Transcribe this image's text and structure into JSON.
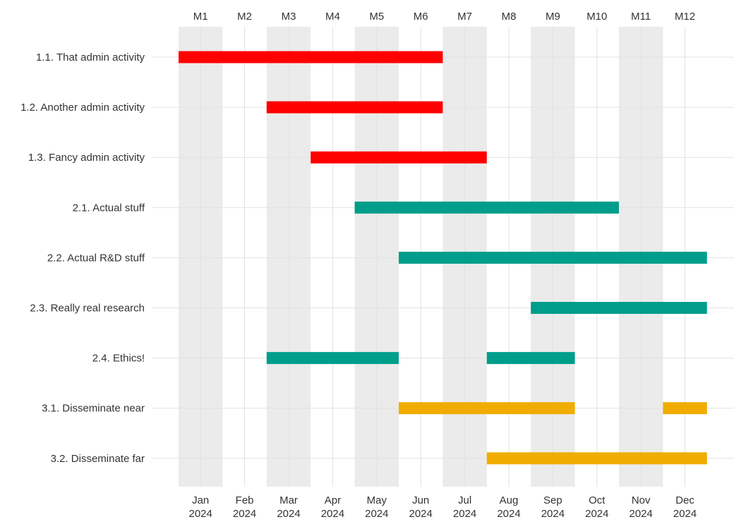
{
  "chart_data": {
    "type": "gantt",
    "title": "",
    "xlabel": "",
    "ylabel": "",
    "months_top": [
      "M1",
      "M2",
      "M3",
      "M4",
      "M5",
      "M6",
      "M7",
      "M8",
      "M9",
      "M10",
      "M11",
      "M12"
    ],
    "months_bottom": [
      "Jan",
      "Feb",
      "Mar",
      "Apr",
      "May",
      "Jun",
      "Jul",
      "Aug",
      "Sep",
      "Oct",
      "Nov",
      "Dec"
    ],
    "year": "2024",
    "x_range_months": [
      1,
      13
    ],
    "colors": {
      "admin": "#FF0000",
      "research": "#009E8A",
      "dissemination": "#F0AD00",
      "band": "#EBEBEB",
      "grid": "#E2E2E2"
    },
    "tasks": [
      {
        "label": "1.1. That admin activity",
        "group": "admin",
        "segments": [
          [
            1,
            7
          ]
        ]
      },
      {
        "label": "1.2. Another admin activity",
        "group": "admin",
        "segments": [
          [
            3,
            7
          ]
        ]
      },
      {
        "label": "1.3. Fancy admin activity",
        "group": "admin",
        "segments": [
          [
            4,
            8
          ]
        ]
      },
      {
        "label": "2.1. Actual stuff",
        "group": "research",
        "segments": [
          [
            5,
            11
          ]
        ]
      },
      {
        "label": "2.2. Actual R&D stuff",
        "group": "research",
        "segments": [
          [
            6,
            13
          ]
        ]
      },
      {
        "label": "2.3. Really real research",
        "group": "research",
        "segments": [
          [
            9,
            13
          ]
        ]
      },
      {
        "label": "2.4. Ethics!",
        "group": "research",
        "segments": [
          [
            3,
            6
          ],
          [
            8,
            10
          ]
        ]
      },
      {
        "label": "3.1. Disseminate near",
        "group": "dissemination",
        "segments": [
          [
            6,
            10
          ],
          [
            12,
            13
          ]
        ]
      },
      {
        "label": "3.2. Disseminate far",
        "group": "dissemination",
        "segments": [
          [
            8,
            13
          ]
        ]
      }
    ]
  }
}
